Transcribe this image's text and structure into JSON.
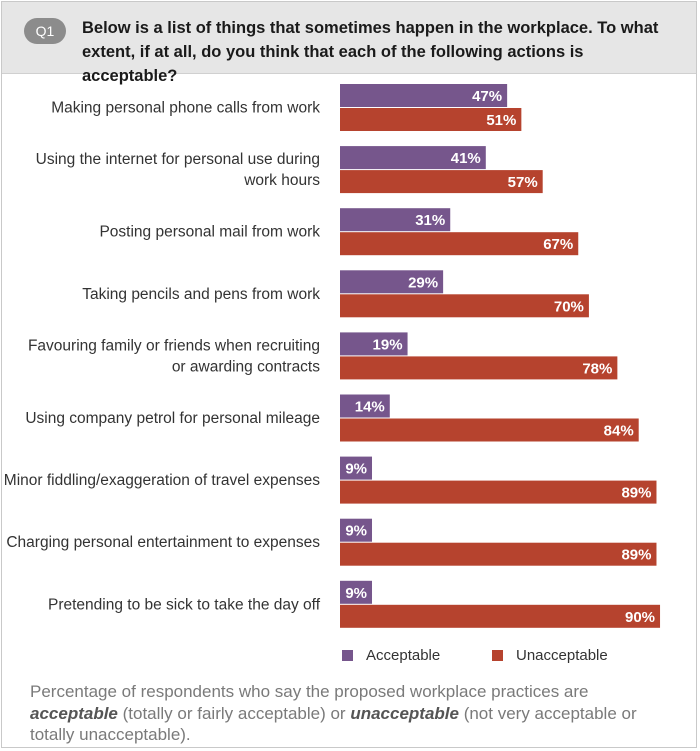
{
  "header": {
    "badge": "Q1",
    "question": "Below is a list of things that sometimes happen in the workplace. To what extent, if at all, do you think that each of the following actions is acceptable?"
  },
  "colors": {
    "acceptable": "#76568c",
    "unacceptable": "#b6432e",
    "header_bg": "#e6e6e6"
  },
  "chart_data": {
    "type": "bar",
    "orientation": "horizontal",
    "categories": [
      [
        "Making personal phone calls from work"
      ],
      [
        "Using the internet for personal use during",
        "work hours"
      ],
      [
        "Posting personal mail from work"
      ],
      [
        "Taking pencils and pens from work"
      ],
      [
        "Favouring family or friends when recruiting",
        "or awarding contracts"
      ],
      [
        "Using company petrol for personal mileage"
      ],
      [
        "Minor fiddling/exaggeration of travel expenses"
      ],
      [
        "Charging personal entertainment to expenses"
      ],
      [
        "Pretending to be sick to take the day off"
      ]
    ],
    "series": [
      {
        "name": "Acceptable",
        "values": [
          47,
          41,
          31,
          29,
          19,
          14,
          9,
          9,
          9
        ],
        "labels": [
          "47%",
          "41%",
          "31%",
          "29%",
          "19%",
          "14%",
          "9%",
          "9%",
          "9%"
        ]
      },
      {
        "name": "Unacceptable",
        "values": [
          51,
          57,
          67,
          70,
          78,
          84,
          89,
          89,
          90
        ],
        "labels": [
          "51%",
          "57%",
          "67%",
          "70%",
          "78%",
          "84%",
          "89%",
          "89%",
          "90%"
        ]
      }
    ],
    "xlim": [
      0,
      90
    ],
    "legend_position": "bottom"
  },
  "legend": {
    "acceptable": "Acceptable",
    "unacceptable": "Unacceptable"
  },
  "footnote": {
    "part1": "Percentage of respondents who say the proposed workplace practices are",
    "acceptable": "acceptable",
    "part2": " (totally or fairly acceptable) or ",
    "unacceptable": "unacceptable",
    "part3": " (not very acceptable or totally unacceptable)."
  }
}
